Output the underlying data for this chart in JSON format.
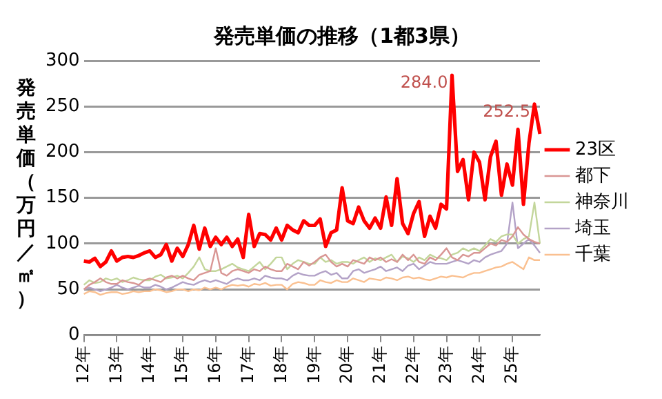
{
  "chart_data": {
    "type": "line",
    "title": "発売単価の推移（1都3県）",
    "ylabel": "発売単価（万円／㎡）",
    "categories": [
      "12年",
      null,
      null,
      null,
      null,
      null,
      "13年",
      null,
      null,
      null,
      null,
      null,
      "14年",
      null,
      null,
      null,
      null,
      null,
      "15年",
      null,
      null,
      null,
      null,
      null,
      "16年",
      null,
      null,
      null,
      null,
      null,
      "17年",
      null,
      null,
      null,
      null,
      null,
      "18年",
      null,
      null,
      null,
      null,
      null,
      "19年",
      null,
      null,
      null,
      null,
      null,
      "20年",
      null,
      null,
      null,
      null,
      null,
      "21年",
      null,
      null,
      null,
      null,
      null,
      "22年",
      null,
      null,
      null,
      null,
      null,
      "23年",
      null,
      null,
      null,
      null,
      null,
      "24年",
      null,
      null,
      null,
      null,
      null,
      "25年",
      null,
      null,
      null,
      null,
      null
    ],
    "ylim": [
      0,
      300
    ],
    "yticks": [
      0,
      50,
      100,
      150,
      200,
      250,
      300
    ],
    "grid": "y",
    "legend": "right",
    "marker": "none",
    "line_style": "solid",
    "series": [
      {
        "name": "23区",
        "color": "#ff0000",
        "values": [
          81,
          80,
          84,
          75,
          80,
          92,
          81,
          85,
          86,
          85,
          87,
          90,
          92,
          85,
          88,
          99,
          81,
          95,
          86,
          99,
          120,
          94,
          117,
          97,
          107,
          99,
          107,
          97,
          105,
          85,
          132,
          97,
          111,
          110,
          104,
          117,
          104,
          120,
          115,
          112,
          125,
          120,
          120,
          127,
          97,
          112,
          115,
          161,
          125,
          122,
          140,
          125,
          117,
          128,
          117,
          151,
          120,
          171,
          122,
          111,
          133,
          146,
          108,
          130,
          117,
          143,
          138,
          284.0,
          179,
          192,
          148,
          200,
          189,
          148,
          195,
          212,
          153,
          187,
          164,
          225,
          143,
          210,
          252.5,
          220
        ],
        "value_labels": [
          null,
          null,
          null,
          null,
          null,
          null,
          null,
          null,
          null,
          null,
          null,
          null,
          null,
          null,
          null,
          null,
          null,
          null,
          null,
          null,
          null,
          null,
          null,
          null,
          null,
          null,
          null,
          null,
          null,
          null,
          null,
          null,
          null,
          null,
          null,
          null,
          null,
          null,
          null,
          null,
          null,
          null,
          null,
          null,
          null,
          null,
          null,
          null,
          null,
          null,
          null,
          null,
          null,
          null,
          null,
          null,
          null,
          null,
          null,
          null,
          null,
          null,
          null,
          null,
          null,
          null,
          null,
          "284.0",
          null,
          null,
          null,
          null,
          null,
          null,
          null,
          null,
          null,
          null,
          null,
          null,
          null,
          null,
          "252.5",
          null
        ]
      },
      {
        "name": "都下",
        "color": "#d99694",
        "values": [
          50,
          55,
          58,
          62,
          58,
          56,
          56,
          60,
          58,
          57,
          55,
          60,
          62,
          60,
          58,
          63,
          65,
          62,
          65,
          62,
          60,
          66,
          68,
          70,
          95,
          68,
          65,
          70,
          72,
          70,
          68,
          72,
          70,
          75,
          72,
          70,
          70,
          78,
          75,
          72,
          80,
          76,
          80,
          85,
          88,
          80,
          75,
          78,
          75,
          82,
          80,
          78,
          85,
          82,
          85,
          80,
          83,
          80,
          88,
          82,
          88,
          80,
          78,
          85,
          82,
          88,
          95,
          85,
          82,
          88,
          86,
          90,
          90,
          95,
          100,
          98,
          104,
          102,
          108,
          118,
          110,
          105,
          102,
          100
        ]
      },
      {
        "name": "神奈川",
        "color": "#c3d69b",
        "values": [
          55,
          60,
          57,
          58,
          62,
          60,
          62,
          58,
          60,
          63,
          61,
          60,
          60,
          64,
          66,
          62,
          63,
          65,
          62,
          68,
          75,
          85,
          72,
          70,
          70,
          72,
          75,
          78,
          74,
          72,
          70,
          75,
          80,
          72,
          78,
          85,
          85,
          72,
          78,
          82,
          80,
          78,
          78,
          85,
          80,
          82,
          78,
          80,
          80,
          78,
          82,
          85,
          80,
          84,
          82,
          85,
          88,
          80,
          86,
          84,
          80,
          85,
          82,
          88,
          85,
          84,
          82,
          88,
          90,
          95,
          92,
          95,
          92,
          98,
          105,
          102,
          108,
          110,
          110,
          100,
          105,
          108,
          145,
          100
        ]
      },
      {
        "name": "埼玉",
        "color": "#b3a2c7",
        "values": [
          50,
          52,
          50,
          48,
          50,
          52,
          55,
          52,
          50,
          52,
          54,
          52,
          52,
          55,
          53,
          50,
          52,
          55,
          58,
          56,
          55,
          58,
          60,
          58,
          60,
          58,
          56,
          60,
          62,
          60,
          60,
          62,
          60,
          65,
          63,
          62,
          62,
          60,
          65,
          68,
          66,
          65,
          65,
          68,
          70,
          66,
          68,
          62,
          62,
          70,
          72,
          68,
          70,
          72,
          75,
          70,
          72,
          74,
          70,
          76,
          78,
          72,
          76,
          80,
          78,
          78,
          78,
          80,
          82,
          80,
          78,
          82,
          80,
          85,
          88,
          90,
          92,
          100,
          145,
          95,
          100,
          105,
          98,
          90
        ]
      },
      {
        "name": "千葉",
        "color": "#fac090",
        "values": [
          45,
          48,
          47,
          44,
          46,
          47,
          47,
          45,
          46,
          48,
          47,
          48,
          48,
          50,
          49,
          47,
          48,
          50,
          50,
          48,
          50,
          49,
          52,
          50,
          52,
          50,
          53,
          55,
          54,
          55,
          53,
          56,
          55,
          57,
          54,
          55,
          55,
          50,
          56,
          58,
          57,
          55,
          55,
          60,
          58,
          57,
          60,
          58,
          58,
          62,
          60,
          58,
          62,
          61,
          60,
          63,
          62,
          60,
          63,
          64,
          62,
          63,
          61,
          60,
          62,
          64,
          63,
          65,
          64,
          63,
          66,
          68,
          68,
          70,
          72,
          74,
          75,
          78,
          80,
          76,
          72,
          85,
          82,
          82
        ]
      }
    ]
  }
}
